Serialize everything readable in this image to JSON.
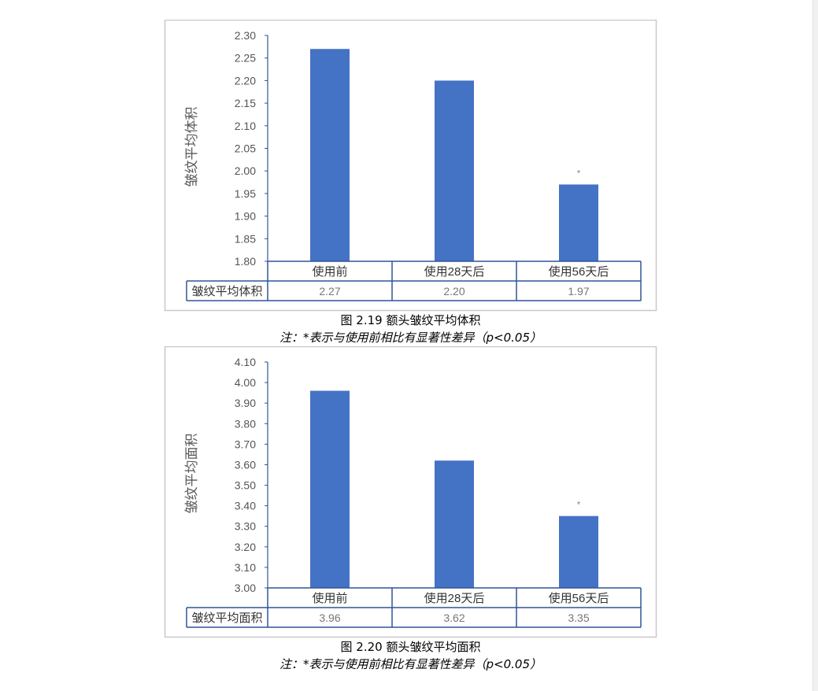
{
  "chart_data": [
    {
      "type": "bar",
      "categories": [
        "使用前",
        "使用28天后",
        "使用56天后"
      ],
      "values": [
        2.27,
        2.2,
        1.97
      ],
      "value_labels": [
        "2.27",
        "2.20",
        "1.97"
      ],
      "ylabel": "皱纹平均体积",
      "table_row_label": "皱纹平均体积",
      "ylim": [
        1.8,
        2.3
      ],
      "yticks": [
        "1.80",
        "1.85",
        "1.90",
        "1.95",
        "2.00",
        "2.05",
        "2.10",
        "2.15",
        "2.20",
        "2.25",
        "2.30"
      ],
      "significance_marks": [
        "",
        "",
        "*"
      ],
      "bar_color": "#4472c4",
      "grid": false,
      "caption": "图 2.19 额头皱纹平均体积",
      "note": "注：*表示与使用前相比有显著性差异（p<0.05）"
    },
    {
      "type": "bar",
      "categories": [
        "使用前",
        "使用28天后",
        "使用56天后"
      ],
      "values": [
        3.96,
        3.62,
        3.35
      ],
      "value_labels": [
        "3.96",
        "3.62",
        "3.35"
      ],
      "ylabel": "皱纹平均面积",
      "table_row_label": "皱纹平均面积",
      "ylim": [
        3.0,
        4.1
      ],
      "yticks": [
        "3.00",
        "3.10",
        "3.20",
        "3.30",
        "3.40",
        "3.50",
        "3.60",
        "3.70",
        "3.80",
        "3.90",
        "4.00",
        "4.10"
      ],
      "significance_marks": [
        "",
        "",
        "*"
      ],
      "bar_color": "#4472c4",
      "grid": false,
      "caption": "图 2.20 额头皱纹平均面积",
      "note": "注：*表示与使用前相比有显著性差异（p<0.05）"
    }
  ]
}
